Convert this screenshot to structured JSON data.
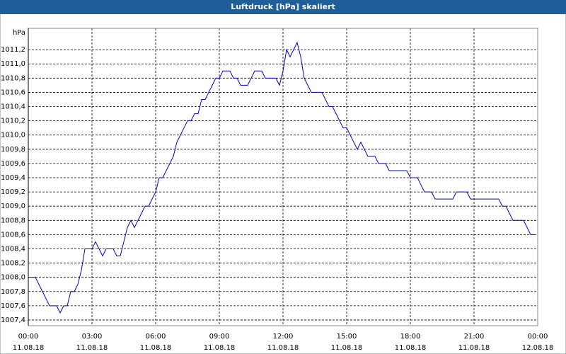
{
  "chart_data": {
    "type": "line",
    "title": "Luftdruck [hPa] skaliert",
    "y_label": "hPa",
    "color": "#0000c0",
    "grid": true,
    "xlim": [
      0,
      1440
    ],
    "ylim": [
      1007.32,
      1011.5
    ],
    "xticks": [
      {
        "value": 0,
        "label": [
          "00:00",
          "11.08.18"
        ]
      },
      {
        "value": 180,
        "label": [
          "03:00",
          "11.08.18"
        ]
      },
      {
        "value": 360,
        "label": [
          "06:00",
          "11.08.18"
        ]
      },
      {
        "value": 540,
        "label": [
          "09:00",
          "11.08.18"
        ]
      },
      {
        "value": 720,
        "label": [
          "12:00",
          "11.08.18"
        ]
      },
      {
        "value": 900,
        "label": [
          "15:00",
          "11.08.18"
        ]
      },
      {
        "value": 1080,
        "label": [
          "18:00",
          "11.08.18"
        ]
      },
      {
        "value": 1260,
        "label": [
          "21:00",
          "11.08.18"
        ]
      },
      {
        "value": 1440,
        "label": [
          "00:00",
          "12.08.18"
        ]
      }
    ],
    "yticks": [
      {
        "value": 1007.4,
        "label": "1007,4"
      },
      {
        "value": 1007.6,
        "label": "1007,6"
      },
      {
        "value": 1007.8,
        "label": "1007,8"
      },
      {
        "value": 1008,
        "label": "1008,0"
      },
      {
        "value": 1008.2,
        "label": "1008,2"
      },
      {
        "value": 1008.4,
        "label": "1008,4"
      },
      {
        "value": 1008.6,
        "label": "1008,6"
      },
      {
        "value": 1008.8,
        "label": "1008,8"
      },
      {
        "value": 1009,
        "label": "1009,0"
      },
      {
        "value": 1009.2,
        "label": "1009,2"
      },
      {
        "value": 1009.4,
        "label": "1009,4"
      },
      {
        "value": 1009.6,
        "label": "1009,6"
      },
      {
        "value": 1009.8,
        "label": "1009,8"
      },
      {
        "value": 1010,
        "label": "1010,0"
      },
      {
        "value": 1010.2,
        "label": "1010,2"
      },
      {
        "value": 1010.4,
        "label": "1010,4"
      },
      {
        "value": 1010.6,
        "label": "1010,6"
      },
      {
        "value": 1010.8,
        "label": "1010,8"
      },
      {
        "value": 1011,
        "label": "1011,0"
      },
      {
        "value": 1011.2,
        "label": "1011,2"
      }
    ],
    "x": [
      0,
      10,
      20,
      30,
      40,
      50,
      60,
      70,
      80,
      90,
      100,
      110,
      120,
      130,
      140,
      150,
      160,
      170,
      180,
      190,
      200,
      210,
      220,
      230,
      240,
      250,
      260,
      270,
      280,
      290,
      300,
      310,
      320,
      330,
      340,
      350,
      360,
      370,
      380,
      390,
      400,
      410,
      420,
      430,
      440,
      450,
      460,
      470,
      480,
      490,
      500,
      510,
      520,
      530,
      540,
      550,
      560,
      570,
      580,
      590,
      600,
      610,
      620,
      630,
      640,
      650,
      660,
      670,
      680,
      690,
      700,
      710,
      720,
      730,
      740,
      750,
      760,
      770,
      780,
      790,
      800,
      810,
      820,
      830,
      840,
      850,
      860,
      870,
      880,
      890,
      900,
      910,
      920,
      930,
      940,
      950,
      960,
      970,
      980,
      990,
      1000,
      1010,
      1020,
      1030,
      1040,
      1050,
      1060,
      1070,
      1080,
      1090,
      1100,
      1110,
      1120,
      1130,
      1140,
      1150,
      1160,
      1170,
      1180,
      1190,
      1200,
      1210,
      1220,
      1230,
      1240,
      1250,
      1260,
      1270,
      1280,
      1290,
      1300,
      1310,
      1320,
      1330,
      1340,
      1350,
      1360,
      1370,
      1380,
      1390,
      1400,
      1410,
      1420,
      1430
    ],
    "values": [
      1008.0,
      1008.0,
      1008.0,
      1007.9,
      1007.8,
      1007.7,
      1007.6,
      1007.6,
      1007.6,
      1007.5,
      1007.6,
      1007.6,
      1007.8,
      1007.8,
      1007.9,
      1008.1,
      1008.4,
      1008.4,
      1008.4,
      1008.5,
      1008.4,
      1008.3,
      1008.4,
      1008.4,
      1008.4,
      1008.3,
      1008.3,
      1008.5,
      1008.7,
      1008.8,
      1008.7,
      1008.8,
      1008.9,
      1009.0,
      1009.0,
      1009.1,
      1009.2,
      1009.4,
      1009.4,
      1009.5,
      1009.6,
      1009.7,
      1009.9,
      1010.0,
      1010.1,
      1010.2,
      1010.2,
      1010.3,
      1010.3,
      1010.5,
      1010.5,
      1010.6,
      1010.7,
      1010.8,
      1010.8,
      1010.9,
      1010.9,
      1010.9,
      1010.8,
      1010.8,
      1010.7,
      1010.7,
      1010.7,
      1010.8,
      1010.9,
      1010.9,
      1010.9,
      1010.8,
      1010.8,
      1010.8,
      1010.8,
      1010.7,
      1010.9,
      1011.2,
      1011.1,
      1011.2,
      1011.3,
      1011.1,
      1010.8,
      1010.7,
      1010.6,
      1010.6,
      1010.6,
      1010.6,
      1010.5,
      1010.4,
      1010.4,
      1010.3,
      1010.2,
      1010.1,
      1010.1,
      1010.0,
      1009.9,
      1009.8,
      1009.9,
      1009.8,
      1009.7,
      1009.7,
      1009.7,
      1009.6,
      1009.6,
      1009.6,
      1009.5,
      1009.5,
      1009.5,
      1009.5,
      1009.5,
      1009.5,
      1009.4,
      1009.4,
      1009.4,
      1009.3,
      1009.2,
      1009.2,
      1009.2,
      1009.1,
      1009.1,
      1009.1,
      1009.1,
      1009.1,
      1009.1,
      1009.2,
      1009.2,
      1009.2,
      1009.2,
      1009.1,
      1009.1,
      1009.1,
      1009.1,
      1009.1,
      1009.1,
      1009.1,
      1009.1,
      1009.1,
      1009.0,
      1009.0,
      1008.9,
      1008.8,
      1008.8,
      1008.8,
      1008.8,
      1008.7,
      1008.6,
      1008.6
    ]
  }
}
